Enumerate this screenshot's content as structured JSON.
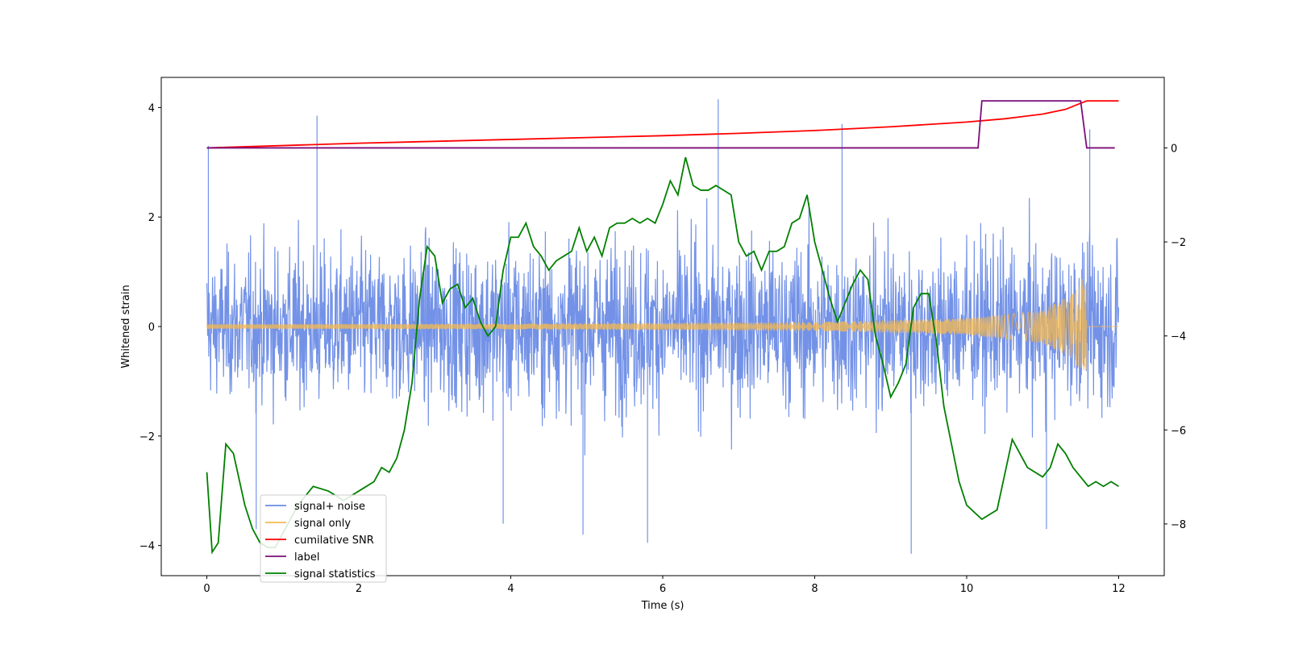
{
  "chart_data": {
    "type": "line",
    "title": "",
    "xlabel": "Time (s)",
    "ylabel": "Whitened strain",
    "xlim": [
      -0.6,
      12.6
    ],
    "ylim": [
      -4.55,
      4.55
    ],
    "ylim_right": [
      -9.1,
      1.5
    ],
    "xticks": [
      0,
      2,
      4,
      6,
      8,
      10,
      12
    ],
    "yticks": [
      -4,
      -2,
      0,
      2,
      4
    ],
    "yticks_right": [
      -8,
      -6,
      -4,
      -2,
      0
    ],
    "legend_location": "lower-left",
    "series": [
      {
        "name": "signal+ noise",
        "axis": "left",
        "color": "#6b8ce6",
        "description": "noisy whitened strain from t=0 to 12",
        "envelope_hi": [
          [
            0,
            2.0
          ],
          [
            1,
            2.4
          ],
          [
            2,
            2.3
          ],
          [
            3,
            2.4
          ],
          [
            4,
            2.5
          ],
          [
            6,
            2.5
          ],
          [
            8,
            2.5
          ],
          [
            10,
            2.5
          ],
          [
            12,
            2.4
          ]
        ],
        "spikes": [
          [
            0.02,
            3.3
          ],
          [
            1.45,
            3.85
          ],
          [
            6.73,
            4.15
          ],
          [
            8.36,
            3.7
          ],
          [
            9.27,
            -4.15
          ],
          [
            5.8,
            -3.95
          ],
          [
            11.62,
            3.6
          ],
          [
            11.05,
            -3.7
          ],
          [
            3.9,
            -3.6
          ],
          [
            4.95,
            -3.8
          ],
          [
            0.65,
            -3.7
          ]
        ]
      },
      {
        "name": "signal only",
        "axis": "left",
        "color": "#f5b84e",
        "amplitude_points": [
          [
            0,
            0.04
          ],
          [
            4,
            0.05
          ],
          [
            8,
            0.08
          ],
          [
            10,
            0.15
          ],
          [
            11,
            0.3
          ],
          [
            11.4,
            0.6
          ],
          [
            11.57,
            1.0
          ],
          [
            11.58,
            0.0
          ],
          [
            12,
            0.0
          ]
        ]
      },
      {
        "name": "cumilative SNR",
        "axis": "right",
        "color": "#ff0000",
        "x": [
          0,
          1,
          2,
          3,
          4,
          5,
          6,
          7,
          8,
          9,
          10,
          10.5,
          11,
          11.3,
          11.5,
          11.58,
          12
        ],
        "values": [
          0,
          0.05,
          0.1,
          0.14,
          0.18,
          0.22,
          0.26,
          0.31,
          0.37,
          0.45,
          0.55,
          0.62,
          0.72,
          0.82,
          0.95,
          1.0,
          1.0
        ]
      },
      {
        "name": "label",
        "axis": "right",
        "color": "#7b0e7a",
        "x": [
          0,
          10.15,
          10.2,
          11.5,
          11.58,
          11.95
        ],
        "values": [
          0,
          0,
          1,
          1,
          0,
          0
        ]
      },
      {
        "name": "signal statistics",
        "axis": "right",
        "color": "#008000",
        "x": [
          0,
          0.07,
          0.15,
          0.25,
          0.35,
          0.5,
          0.6,
          0.7,
          0.8,
          0.9,
          1.0,
          1.2,
          1.4,
          1.6,
          1.8,
          2.0,
          2.2,
          2.3,
          2.4,
          2.5,
          2.6,
          2.7,
          2.8,
          2.9,
          3.0,
          3.1,
          3.2,
          3.3,
          3.4,
          3.5,
          3.6,
          3.7,
          3.8,
          3.9,
          4.0,
          4.1,
          4.2,
          4.3,
          4.4,
          4.5,
          4.6,
          4.7,
          4.8,
          4.9,
          5.0,
          5.1,
          5.2,
          5.3,
          5.4,
          5.5,
          5.6,
          5.7,
          5.8,
          5.9,
          6.0,
          6.1,
          6.2,
          6.3,
          6.4,
          6.5,
          6.6,
          6.7,
          6.8,
          6.9,
          7.0,
          7.1,
          7.2,
          7.3,
          7.4,
          7.5,
          7.6,
          7.7,
          7.8,
          7.9,
          8.0,
          8.1,
          8.2,
          8.3,
          8.4,
          8.5,
          8.6,
          8.7,
          8.8,
          8.9,
          9.0,
          9.1,
          9.2,
          9.3,
          9.4,
          9.5,
          9.6,
          9.7,
          9.8,
          9.9,
          10.0,
          10.2,
          10.4,
          10.6,
          10.8,
          11.0,
          11.1,
          11.2,
          11.3,
          11.4,
          11.5,
          11.6,
          11.7,
          11.8,
          11.9,
          12.0
        ],
        "values": [
          -6.9,
          -8.6,
          -8.4,
          -6.3,
          -6.5,
          -7.6,
          -8.1,
          -8.4,
          -8.5,
          -8.5,
          -8.2,
          -7.6,
          -7.2,
          -7.3,
          -7.5,
          -7.3,
          -7.1,
          -6.8,
          -6.9,
          -6.6,
          -6.0,
          -5.0,
          -3.2,
          -2.1,
          -2.3,
          -3.3,
          -3.0,
          -2.9,
          -3.4,
          -3.2,
          -3.7,
          -4.0,
          -3.8,
          -2.6,
          -1.9,
          -1.9,
          -1.6,
          -2.1,
          -2.3,
          -2.6,
          -2.4,
          -2.3,
          -2.2,
          -1.7,
          -2.2,
          -1.9,
          -2.3,
          -1.7,
          -1.6,
          -1.6,
          -1.5,
          -1.6,
          -1.5,
          -1.6,
          -1.2,
          -0.7,
          -1.0,
          -0.2,
          -0.8,
          -0.9,
          -0.9,
          -0.8,
          -0.9,
          -1.0,
          -2.0,
          -2.3,
          -2.2,
          -2.6,
          -2.2,
          -2.2,
          -2.1,
          -1.6,
          -1.5,
          -1.0,
          -2.0,
          -2.6,
          -3.2,
          -3.7,
          -3.3,
          -2.9,
          -2.6,
          -2.8,
          -4.0,
          -4.6,
          -5.3,
          -5.0,
          -4.6,
          -3.4,
          -3.1,
          -3.1,
          -4.1,
          -5.5,
          -6.3,
          -7.1,
          -7.6,
          -7.9,
          -7.7,
          -6.2,
          -6.8,
          -7.0,
          -6.8,
          -6.3,
          -6.5,
          -6.8,
          -7.0,
          -7.2,
          -7.1,
          -7.2,
          -7.1,
          -7.2
        ]
      }
    ]
  }
}
